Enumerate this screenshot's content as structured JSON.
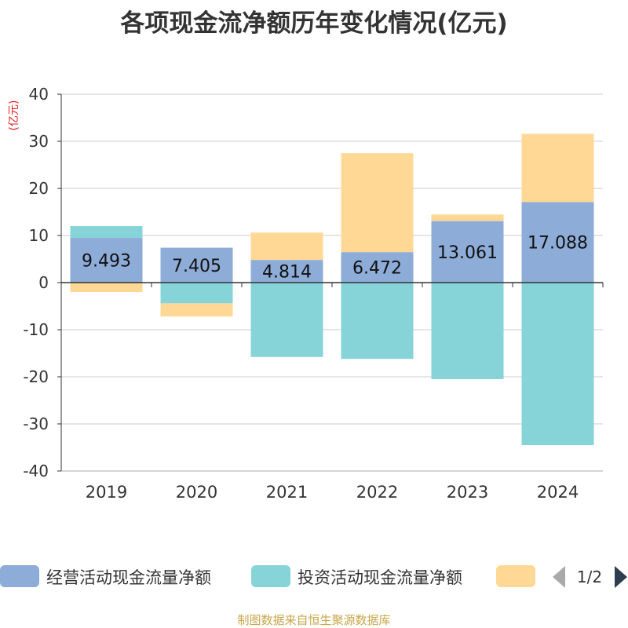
{
  "chart_data": {
    "type": "bar",
    "title": "各项现金流净额历年变化情况(亿元)",
    "ylabel": "(亿元)",
    "categories": [
      "2019",
      "2020",
      "2021",
      "2022",
      "2023",
      "2024"
    ],
    "ylim": [
      -40,
      40
    ],
    "yticks": [
      "40",
      "30",
      "20",
      "10",
      "0",
      "-10",
      "-20",
      "-30",
      "-40"
    ],
    "stacked": true,
    "grid": true,
    "legend_position": "bottom",
    "series": [
      {
        "name": "经营活动现金流量净额",
        "color": "#8eacd8",
        "values": [
          9.493,
          7.405,
          4.814,
          6.472,
          13.061,
          17.088
        ],
        "labels": [
          "9.493",
          "7.405",
          "4.814",
          "6.472",
          "13.061",
          "17.088"
        ]
      },
      {
        "name": "投资活动现金流量净额",
        "color": "#86d4d8",
        "values": [
          2.5,
          -4.4,
          -15.8,
          -16.2,
          -20.5,
          -34.5
        ]
      },
      {
        "name": "",
        "color": "#ffd896",
        "values": [
          -2.0,
          -2.8,
          5.8,
          21.0,
          1.4,
          14.5
        ]
      }
    ]
  },
  "legend": {
    "page": "1/2"
  },
  "footer": "制图数据来自恒生聚源数据库"
}
